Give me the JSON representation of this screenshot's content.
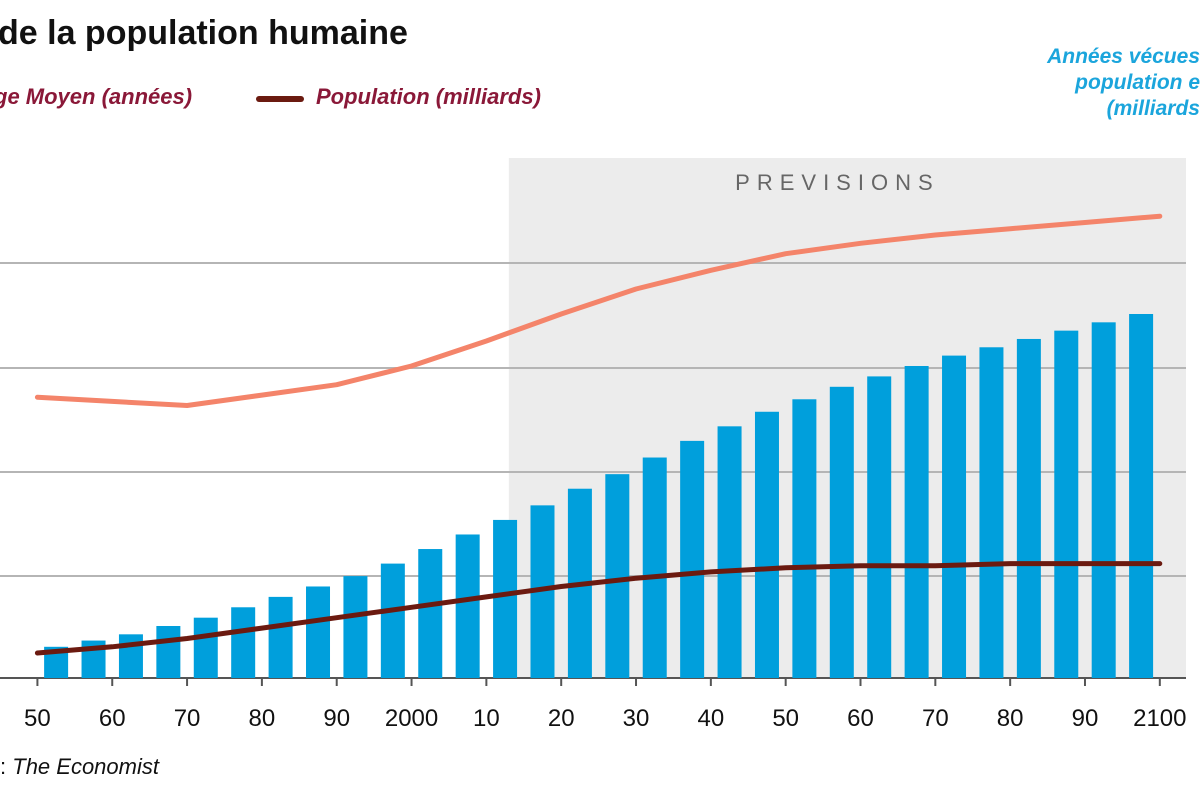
{
  "title": "de la population humaine",
  "legend": {
    "age_label": "ge Moyen (années)",
    "population_label": "Population (milliards)"
  },
  "right_axis_label": [
    "Années vécues",
    "population e",
    "(milliards"
  ],
  "forecast_label": "PREVISIONS",
  "source": {
    "prefix": ":",
    "publisher": "The Economist"
  },
  "colors": {
    "bars": "#009fdc",
    "age_line": "#f4846a",
    "population_line": "#6b1a10",
    "forecast_bg": "#ececec",
    "grid": "#b5b5b5",
    "legend_text": "#8a1838",
    "right_label_text": "#1ba5dc"
  },
  "chart_data": {
    "type": "bar",
    "x_tick_labels": [
      "50",
      "60",
      "70",
      "80",
      "90",
      "2000",
      "10",
      "20",
      "30",
      "40",
      "50",
      "60",
      "70",
      "80",
      "90",
      "2100"
    ],
    "x_start": 1950,
    "x_step": 5,
    "forecast_start_year": 2013,
    "grid": true,
    "bars_series_name": "Années vécues",
    "bars_values_relative": [
      1.5,
      1.8,
      2.1,
      2.5,
      2.9,
      3.4,
      3.9,
      4.4,
      4.9,
      5.5,
      6.2,
      6.9,
      7.6,
      8.3,
      9.1,
      9.8,
      10.6,
      11.4,
      12.1,
      12.8,
      13.4,
      14.0,
      14.5,
      15.0,
      15.5,
      15.9,
      16.3,
      16.7,
      17.1,
      17.5
    ],
    "series": [
      {
        "name": "Age Moyen (années)",
        "x": [
          1950,
          1960,
          1970,
          1980,
          1990,
          2000,
          2010,
          2020,
          2030,
          2040,
          2050,
          2060,
          2070,
          2080,
          2090,
          2100
        ],
        "values_relative": [
          13.5,
          13.3,
          13.1,
          13.6,
          14.1,
          15.0,
          16.2,
          17.5,
          18.7,
          19.6,
          20.4,
          20.9,
          21.3,
          21.6,
          21.9,
          22.2
        ]
      },
      {
        "name": "Population (milliards)",
        "x": [
          1950,
          1960,
          1970,
          1980,
          1990,
          2000,
          2010,
          2020,
          2030,
          2040,
          2050,
          2060,
          2070,
          2080,
          2090,
          2100
        ],
        "values_relative": [
          1.2,
          1.5,
          1.9,
          2.4,
          2.9,
          3.4,
          3.9,
          4.4,
          4.8,
          5.1,
          5.3,
          5.4,
          5.4,
          5.5,
          5.5,
          5.5
        ]
      }
    ]
  }
}
